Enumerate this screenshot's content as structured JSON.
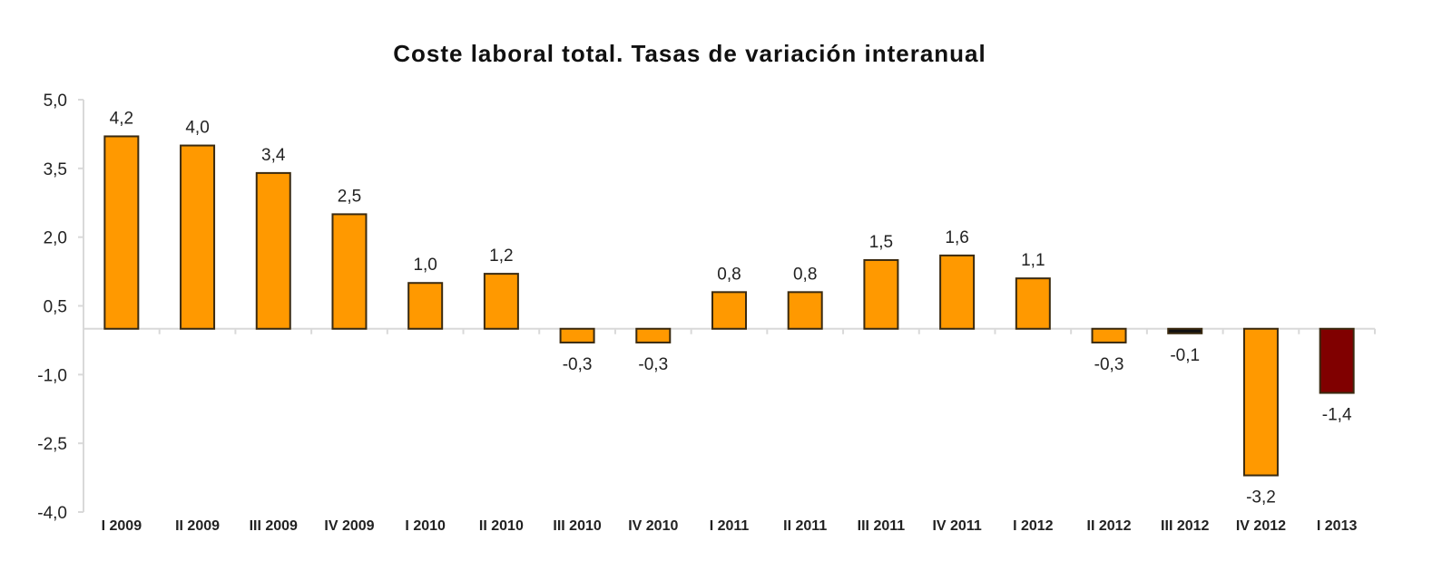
{
  "chart_data": {
    "type": "bar",
    "title": "Coste laboral total. Tasas de variación interanual",
    "xlabel": "",
    "ylabel": "",
    "ylim": [
      -4.0,
      5.0
    ],
    "yticks": [
      5.0,
      3.5,
      2.0,
      0.5,
      -1.0,
      -2.5,
      -4.0
    ],
    "ytick_labels": [
      "5,0",
      "3,5",
      "2,0",
      "0,5",
      "-1,0",
      "-2,5",
      "-4,0"
    ],
    "grid": false,
    "legend": "none",
    "categories": [
      "I 2009",
      "II 2009",
      "III 2009",
      "IV 2009",
      "I 2010",
      "II 2010",
      "III 2010",
      "IV 2010",
      "I 2011",
      "II 2011",
      "III 2011",
      "IV 2011",
      "I 2012",
      "II 2012",
      "III 2012",
      "IV 2012",
      "I 2013"
    ],
    "values": [
      4.2,
      4.0,
      3.4,
      2.5,
      1.0,
      1.2,
      -0.3,
      -0.3,
      0.8,
      0.8,
      1.5,
      1.6,
      1.1,
      -0.3,
      -0.1,
      -3.2,
      -1.4
    ],
    "data_labels": [
      "4,2",
      "4,0",
      "3,4",
      "2,5",
      "1,0",
      "1,2",
      "-0,3",
      "-0,3",
      "0,8",
      "0,8",
      "1,5",
      "1,6",
      "1,1",
      "-0,3",
      "-0,1",
      "-3,2",
      "-1,4"
    ],
    "colors": {
      "default": "#FF9900",
      "highlight": "#800000",
      "border": "#3a2a10",
      "axis": "#d9d9d9"
    },
    "highlight_index": 16
  }
}
